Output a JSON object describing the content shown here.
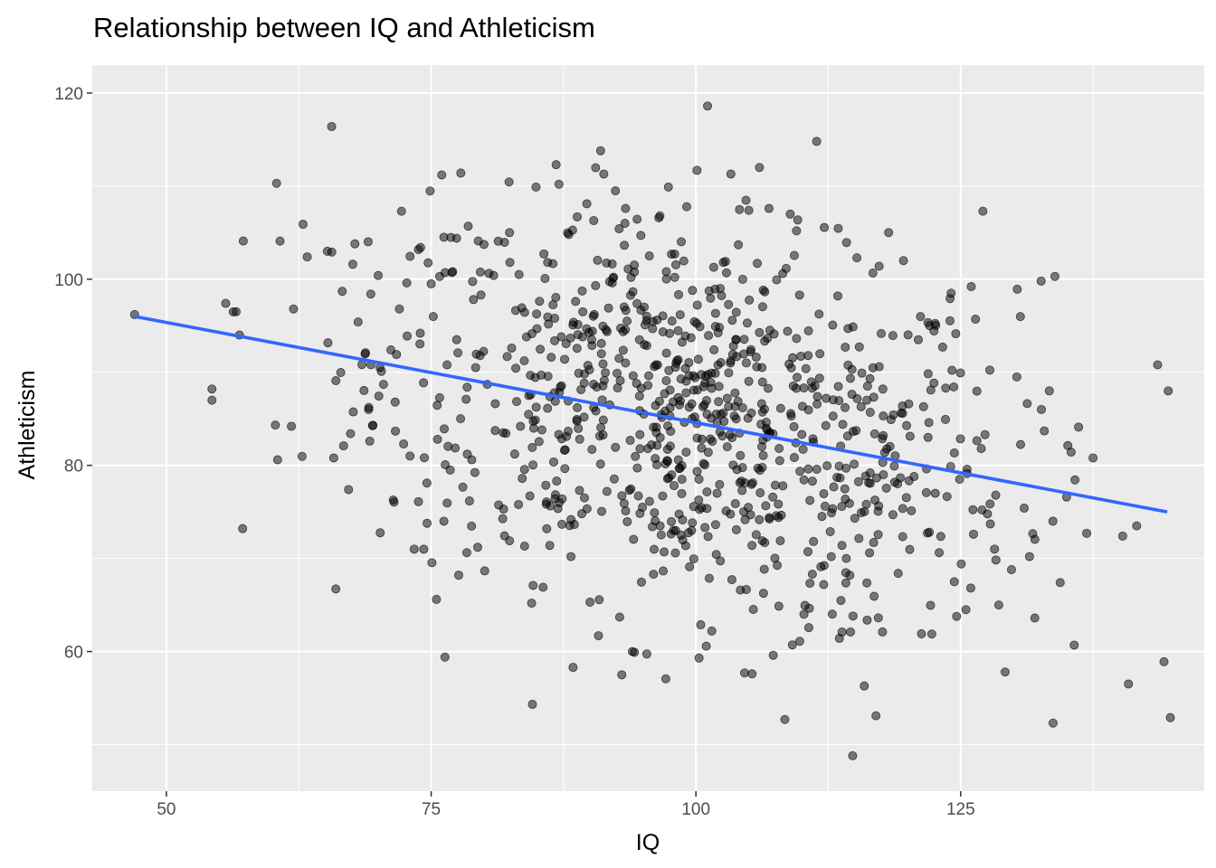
{
  "chart_data": {
    "type": "scatter",
    "title": "Relationship between IQ and Athleticism",
    "xlabel": "IQ",
    "ylabel": "Athleticism",
    "xlim": [
      43,
      148
    ],
    "ylim": [
      45,
      123
    ],
    "x_ticks": [
      50,
      75,
      100,
      125
    ],
    "y_ticks": [
      60,
      80,
      100,
      120
    ],
    "x_tick_labels": [
      "50",
      "75",
      "100",
      "125"
    ],
    "y_tick_labels": [
      "60",
      "80",
      "100",
      "120"
    ],
    "grid": true,
    "legend": "none",
    "colors": {
      "panel": "#EBEBEB",
      "grid": "#FFFFFF",
      "point": "#000000",
      "trend_line": "#3366FF"
    },
    "trend_line": {
      "x": [
        47,
        144.5
      ],
      "y": [
        96,
        75
      ]
    },
    "points_sample": [
      [
        47,
        96.2
      ],
      [
        54.3,
        88.2
      ],
      [
        54.3,
        87
      ],
      [
        55.6,
        97.4
      ],
      [
        56.9,
        94
      ],
      [
        57.2,
        73.2
      ],
      [
        60.4,
        110.3
      ],
      [
        60.5,
        80.6
      ],
      [
        61.8,
        84.2
      ],
      [
        62,
        96.8
      ],
      [
        62.9,
        105.9
      ],
      [
        63.3,
        102.4
      ],
      [
        65.2,
        103
      ],
      [
        65.6,
        116.4
      ],
      [
        65.8,
        80.8
      ],
      [
        66,
        89.1
      ],
      [
        66.6,
        98.7
      ],
      [
        67.2,
        77.4
      ],
      [
        67.6,
        101.6
      ],
      [
        67.8,
        103.8
      ],
      [
        68.1,
        95.4
      ],
      [
        68.8,
        92.1
      ],
      [
        69.1,
        86
      ],
      [
        69.2,
        82.6
      ],
      [
        69.3,
        98.4
      ],
      [
        69.5,
        84.3
      ],
      [
        70,
        100.4
      ],
      [
        70.3,
        90.1
      ],
      [
        70.5,
        88.7
      ],
      [
        71.2,
        92.4
      ],
      [
        71.6,
        86.8
      ],
      [
        72,
        96.8
      ],
      [
        72.2,
        107.3
      ],
      [
        72.4,
        82.3
      ],
      [
        72.7,
        99.6
      ],
      [
        73,
        81
      ],
      [
        73.4,
        71
      ],
      [
        73.8,
        76.1
      ],
      [
        74,
        103.4
      ],
      [
        74.3,
        71
      ],
      [
        74.6,
        78.1
      ],
      [
        75,
        99.5
      ],
      [
        75.5,
        65.6
      ],
      [
        75.6,
        82.8
      ],
      [
        75.8,
        100.3
      ],
      [
        76,
        111.2
      ],
      [
        76.2,
        74
      ],
      [
        76.3,
        59.4
      ],
      [
        76.5,
        90.8
      ],
      [
        76.8,
        79.5
      ],
      [
        77.4,
        104.4
      ],
      [
        77.6,
        68.2
      ],
      [
        77.8,
        111.4
      ],
      [
        78.3,
        87.1
      ],
      [
        78.5,
        105.7
      ],
      [
        79.2,
        90.5
      ],
      [
        79.7,
        98.3
      ],
      [
        80.3,
        88.7
      ],
      [
        80.9,
        100.4
      ],
      [
        81.8,
        83.5
      ],
      [
        82.4,
        105
      ],
      [
        82.6,
        92.6
      ],
      [
        83.3,
        100.5
      ],
      [
        83.6,
        78.6
      ],
      [
        84,
        93.8
      ],
      [
        84.4,
        87.6
      ],
      [
        84.9,
        109.9
      ],
      [
        85.4,
        89.7
      ],
      [
        86,
        101.8
      ],
      [
        86.2,
        71.4
      ],
      [
        86.8,
        112.3
      ],
      [
        87.1,
        76
      ],
      [
        87.6,
        91.4
      ],
      [
        88,
        104.8
      ],
      [
        88.2,
        70.2
      ],
      [
        88.4,
        58.3
      ],
      [
        88.8,
        86.2
      ],
      [
        89.3,
        93.8
      ],
      [
        89.7,
        108.1
      ],
      [
        90,
        65.3
      ],
      [
        90.4,
        96.2
      ],
      [
        90.8,
        61.7
      ],
      [
        91,
        113.8
      ],
      [
        91.3,
        111.3
      ],
      [
        91.6,
        77.2
      ],
      [
        92.1,
        99.6
      ],
      [
        92.4,
        109.5
      ],
      [
        92.8,
        63.7
      ],
      [
        93,
        57.5
      ],
      [
        93.3,
        106
      ],
      [
        93.6,
        101.1
      ],
      [
        94,
        60
      ],
      [
        94.4,
        88.8
      ],
      [
        94.8,
        104.7
      ],
      [
        95.2,
        95.1
      ],
      [
        95.6,
        102.5
      ],
      [
        96,
        68.3
      ],
      [
        96.5,
        106.6
      ],
      [
        97,
        70.7
      ],
      [
        97.2,
        89.1
      ],
      [
        97.4,
        109.9
      ],
      [
        98,
        100.2
      ],
      [
        98.5,
        79.7
      ],
      [
        99,
        90.4
      ],
      [
        99.4,
        69.1
      ],
      [
        99.6,
        73
      ],
      [
        100.1,
        111.7
      ],
      [
        100.3,
        59.3
      ],
      [
        100.8,
        86.5
      ],
      [
        101.1,
        118.6
      ],
      [
        101.5,
        62.2
      ],
      [
        102,
        77
      ],
      [
        102.3,
        99
      ],
      [
        102.8,
        101.9
      ],
      [
        103.3,
        111.3
      ],
      [
        103.8,
        85
      ],
      [
        104.2,
        66.6
      ],
      [
        104.6,
        57.7
      ],
      [
        105,
        107.4
      ],
      [
        105.3,
        57.6
      ],
      [
        105.8,
        101.7
      ],
      [
        106,
        112
      ],
      [
        106.5,
        71.7
      ],
      [
        106.9,
        107.6
      ],
      [
        107.3,
        59.6
      ],
      [
        107.8,
        74.4
      ],
      [
        108.2,
        100.6
      ],
      [
        108.4,
        52.7
      ],
      [
        109,
        85.3
      ],
      [
        109.5,
        105.2
      ],
      [
        109.8,
        61.1
      ],
      [
        110.2,
        64
      ],
      [
        110.6,
        91.8
      ],
      [
        111,
        78.3
      ],
      [
        111.4,
        114.8
      ],
      [
        111.8,
        69.1
      ],
      [
        112.3,
        87.2
      ],
      [
        112.8,
        74.9
      ],
      [
        113.4,
        98.2
      ],
      [
        113.8,
        62.1
      ],
      [
        114.2,
        70
      ],
      [
        114.6,
        62.1
      ],
      [
        114.8,
        48.8
      ],
      [
        115.2,
        102.3
      ],
      [
        115.6,
        86.3
      ],
      [
        115.9,
        56.3
      ],
      [
        116.4,
        70.6
      ],
      [
        117,
        53.1
      ],
      [
        117.3,
        101.4
      ],
      [
        117.7,
        79
      ],
      [
        118.2,
        105
      ],
      [
        118.6,
        74.7
      ],
      [
        119.1,
        68.4
      ],
      [
        119.6,
        102
      ],
      [
        120.1,
        86.6
      ],
      [
        120.6,
        78.8
      ],
      [
        121,
        93.5
      ],
      [
        121.3,
        61.9
      ],
      [
        122,
        84.6
      ],
      [
        122.6,
        77
      ],
      [
        123.3,
        92.7
      ],
      [
        124.1,
        98.5
      ],
      [
        124.4,
        67.5
      ],
      [
        124.9,
        78.5
      ],
      [
        125.5,
        64.5
      ],
      [
        126,
        99.2
      ],
      [
        126.4,
        95.7
      ],
      [
        127.1,
        107.3
      ],
      [
        127.3,
        83.3
      ],
      [
        127.8,
        73.7
      ],
      [
        128.2,
        71
      ],
      [
        128.6,
        65
      ],
      [
        129.2,
        57.8
      ],
      [
        129.8,
        68.8
      ],
      [
        130.3,
        89.5
      ],
      [
        131,
        75.4
      ],
      [
        131.5,
        70.2
      ],
      [
        132,
        63.6
      ],
      [
        132.6,
        99.8
      ],
      [
        132.9,
        83.7
      ],
      [
        133.9,
        100.3
      ],
      [
        134.4,
        67.4
      ],
      [
        135,
        76.6
      ],
      [
        136.9,
        72.7
      ],
      [
        137.5,
        80.8
      ],
      [
        140.3,
        72.4
      ],
      [
        143.6,
        90.8
      ],
      [
        144.2,
        58.9
      ],
      [
        144.6,
        88
      ],
      [
        144.8,
        52.9
      ]
    ]
  }
}
